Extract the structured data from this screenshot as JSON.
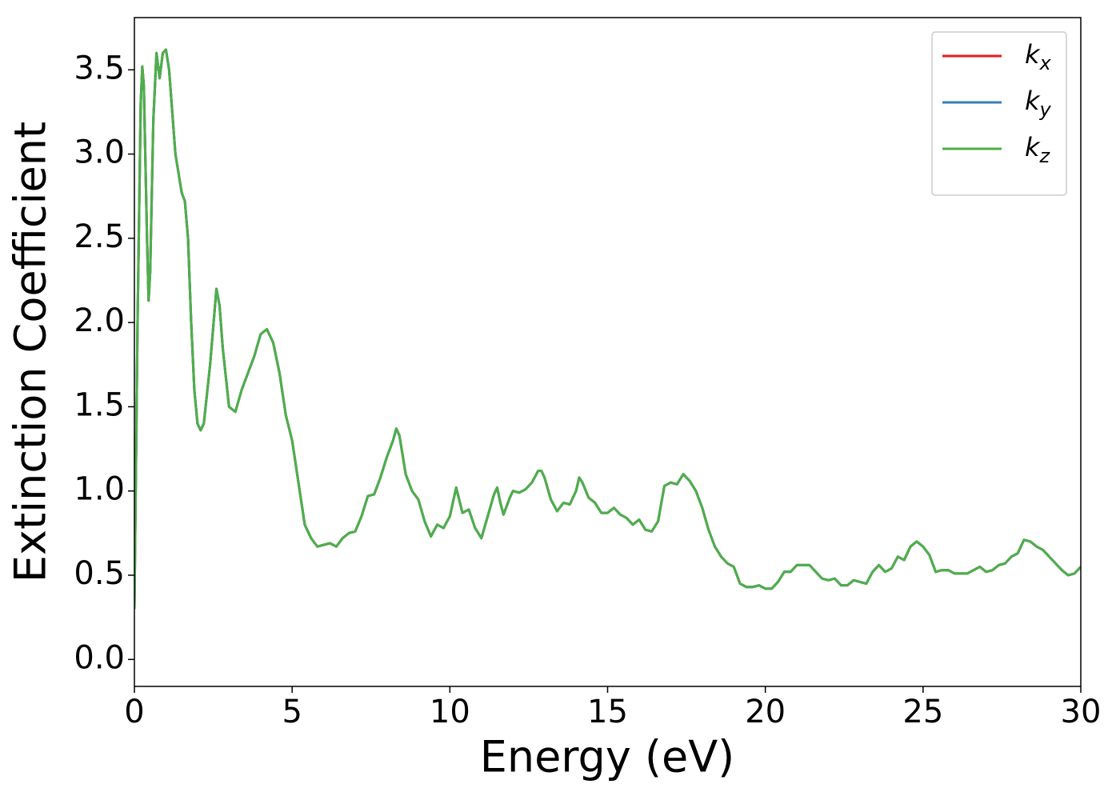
{
  "chart_data": {
    "type": "line",
    "xlabel": "Energy (eV)",
    "ylabel": "Extinction Coefficient",
    "x": [
      0,
      0.1,
      0.2,
      0.25,
      0.3,
      0.4,
      0.45,
      0.5,
      0.6,
      0.7,
      0.8,
      0.9,
      1.0,
      1.1,
      1.2,
      1.3,
      1.5,
      1.6,
      1.7,
      1.8,
      1.9,
      2.0,
      2.1,
      2.2,
      2.4,
      2.6,
      2.7,
      2.8,
      3.0,
      3.2,
      3.4,
      3.6,
      3.8,
      4.0,
      4.2,
      4.4,
      4.6,
      4.8,
      5.0,
      5.2,
      5.4,
      5.6,
      5.8,
      6.0,
      6.2,
      6.4,
      6.6,
      6.8,
      7.0,
      7.2,
      7.4,
      7.6,
      7.8,
      8.0,
      8.2,
      8.3,
      8.4,
      8.6,
      8.8,
      9.0,
      9.2,
      9.4,
      9.6,
      9.8,
      10.0,
      10.2,
      10.4,
      10.6,
      10.8,
      11.0,
      11.2,
      11.4,
      11.5,
      11.6,
      11.7,
      11.9,
      12.0,
      12.2,
      12.4,
      12.6,
      12.8,
      12.9,
      13.0,
      13.2,
      13.4,
      13.6,
      13.8,
      14.0,
      14.1,
      14.2,
      14.4,
      14.6,
      14.8,
      15.0,
      15.2,
      15.4,
      15.6,
      15.8,
      16.0,
      16.2,
      16.4,
      16.6,
      16.8,
      17.0,
      17.2,
      17.4,
      17.6,
      17.8,
      18.0,
      18.2,
      18.4,
      18.6,
      18.8,
      19.0,
      19.2,
      19.4,
      19.6,
      19.8,
      20.0,
      20.2,
      20.4,
      20.6,
      20.8,
      21.0,
      21.2,
      21.4,
      21.6,
      21.8,
      22.0,
      22.2,
      22.4,
      22.6,
      22.8,
      23.0,
      23.2,
      23.4,
      23.6,
      23.8,
      24.0,
      24.2,
      24.4,
      24.6,
      24.8,
      25.0,
      25.2,
      25.4,
      25.6,
      25.8,
      26.0,
      26.2,
      26.4,
      26.6,
      26.8,
      27.0,
      27.2,
      27.4,
      27.6,
      27.8,
      28.0,
      28.2,
      28.4,
      28.6,
      28.8,
      29.0,
      29.2,
      29.4,
      29.6,
      29.8,
      30.0
    ],
    "series": [
      {
        "name": "kx",
        "color": "#e41a1c",
        "values": [
          0.3,
          2.0,
          3.3,
          3.52,
          3.4,
          2.5,
          2.13,
          2.3,
          3.2,
          3.6,
          3.45,
          3.6,
          3.62,
          3.5,
          3.25,
          3.0,
          2.77,
          2.72,
          2.5,
          2.0,
          1.6,
          1.4,
          1.36,
          1.4,
          1.75,
          2.2,
          2.1,
          1.85,
          1.5,
          1.47,
          1.6,
          1.7,
          1.8,
          1.93,
          1.96,
          1.88,
          1.7,
          1.45,
          1.3,
          1.05,
          0.8,
          0.72,
          0.67,
          0.68,
          0.69,
          0.67,
          0.72,
          0.75,
          0.76,
          0.85,
          0.97,
          0.98,
          1.08,
          1.2,
          1.3,
          1.37,
          1.33,
          1.1,
          1.0,
          0.95,
          0.82,
          0.73,
          0.8,
          0.78,
          0.85,
          1.02,
          0.87,
          0.89,
          0.78,
          0.72,
          0.85,
          0.98,
          1.02,
          0.93,
          0.86,
          0.96,
          1.0,
          0.99,
          1.01,
          1.05,
          1.12,
          1.12,
          1.08,
          0.95,
          0.88,
          0.93,
          0.92,
          1.0,
          1.08,
          1.05,
          0.96,
          0.93,
          0.87,
          0.87,
          0.9,
          0.86,
          0.84,
          0.8,
          0.83,
          0.77,
          0.76,
          0.82,
          1.03,
          1.05,
          1.04,
          1.1,
          1.06,
          1.0,
          0.9,
          0.77,
          0.67,
          0.61,
          0.57,
          0.55,
          0.45,
          0.43,
          0.43,
          0.44,
          0.42,
          0.42,
          0.46,
          0.52,
          0.52,
          0.56,
          0.56,
          0.56,
          0.52,
          0.48,
          0.47,
          0.48,
          0.44,
          0.44,
          0.47,
          0.46,
          0.45,
          0.52,
          0.56,
          0.52,
          0.54,
          0.61,
          0.59,
          0.67,
          0.7,
          0.67,
          0.62,
          0.52,
          0.53,
          0.53,
          0.51,
          0.51,
          0.51,
          0.53,
          0.55,
          0.52,
          0.53,
          0.56,
          0.57,
          0.61,
          0.63,
          0.71,
          0.7,
          0.67,
          0.65,
          0.61,
          0.57,
          0.53,
          0.5,
          0.51,
          0.55
        ]
      },
      {
        "name": "ky",
        "color": "#377eb8",
        "values": [
          0.3,
          2.0,
          3.3,
          3.52,
          3.4,
          2.5,
          2.13,
          2.3,
          3.2,
          3.6,
          3.45,
          3.6,
          3.62,
          3.5,
          3.25,
          3.0,
          2.77,
          2.72,
          2.5,
          2.0,
          1.6,
          1.4,
          1.36,
          1.4,
          1.75,
          2.2,
          2.1,
          1.85,
          1.5,
          1.47,
          1.6,
          1.7,
          1.8,
          1.93,
          1.96,
          1.88,
          1.7,
          1.45,
          1.3,
          1.05,
          0.8,
          0.72,
          0.67,
          0.68,
          0.69,
          0.67,
          0.72,
          0.75,
          0.76,
          0.85,
          0.97,
          0.98,
          1.08,
          1.2,
          1.3,
          1.37,
          1.33,
          1.1,
          1.0,
          0.95,
          0.82,
          0.73,
          0.8,
          0.78,
          0.85,
          1.02,
          0.87,
          0.89,
          0.78,
          0.72,
          0.85,
          0.98,
          1.02,
          0.93,
          0.86,
          0.96,
          1.0,
          0.99,
          1.01,
          1.05,
          1.12,
          1.12,
          1.08,
          0.95,
          0.88,
          0.93,
          0.92,
          1.0,
          1.08,
          1.05,
          0.96,
          0.93,
          0.87,
          0.87,
          0.9,
          0.86,
          0.84,
          0.8,
          0.83,
          0.77,
          0.76,
          0.82,
          1.03,
          1.05,
          1.04,
          1.1,
          1.06,
          1.0,
          0.9,
          0.77,
          0.67,
          0.61,
          0.57,
          0.55,
          0.45,
          0.43,
          0.43,
          0.44,
          0.42,
          0.42,
          0.46,
          0.52,
          0.52,
          0.56,
          0.56,
          0.56,
          0.52,
          0.48,
          0.47,
          0.48,
          0.44,
          0.44,
          0.47,
          0.46,
          0.45,
          0.52,
          0.56,
          0.52,
          0.54,
          0.61,
          0.59,
          0.67,
          0.7,
          0.67,
          0.62,
          0.52,
          0.53,
          0.53,
          0.51,
          0.51,
          0.51,
          0.53,
          0.55,
          0.52,
          0.53,
          0.56,
          0.57,
          0.61,
          0.63,
          0.71,
          0.7,
          0.67,
          0.65,
          0.61,
          0.57,
          0.53,
          0.5,
          0.51,
          0.55
        ]
      },
      {
        "name": "kz",
        "color": "#4daf4a",
        "values": [
          0.3,
          2.0,
          3.3,
          3.52,
          3.4,
          2.5,
          2.13,
          2.3,
          3.2,
          3.6,
          3.45,
          3.6,
          3.62,
          3.5,
          3.25,
          3.0,
          2.77,
          2.72,
          2.5,
          2.0,
          1.6,
          1.4,
          1.36,
          1.4,
          1.75,
          2.2,
          2.1,
          1.85,
          1.5,
          1.47,
          1.6,
          1.7,
          1.8,
          1.93,
          1.96,
          1.88,
          1.7,
          1.45,
          1.3,
          1.05,
          0.8,
          0.72,
          0.67,
          0.68,
          0.69,
          0.67,
          0.72,
          0.75,
          0.76,
          0.85,
          0.97,
          0.98,
          1.08,
          1.2,
          1.3,
          1.37,
          1.33,
          1.1,
          1.0,
          0.95,
          0.82,
          0.73,
          0.8,
          0.78,
          0.85,
          1.02,
          0.87,
          0.89,
          0.78,
          0.72,
          0.85,
          0.98,
          1.02,
          0.93,
          0.86,
          0.96,
          1.0,
          0.99,
          1.01,
          1.05,
          1.12,
          1.12,
          1.08,
          0.95,
          0.88,
          0.93,
          0.92,
          1.0,
          1.08,
          1.05,
          0.96,
          0.93,
          0.87,
          0.87,
          0.9,
          0.86,
          0.84,
          0.8,
          0.83,
          0.77,
          0.76,
          0.82,
          1.03,
          1.05,
          1.04,
          1.1,
          1.06,
          1.0,
          0.9,
          0.77,
          0.67,
          0.61,
          0.57,
          0.55,
          0.45,
          0.43,
          0.43,
          0.44,
          0.42,
          0.42,
          0.46,
          0.52,
          0.52,
          0.56,
          0.56,
          0.56,
          0.52,
          0.48,
          0.47,
          0.48,
          0.44,
          0.44,
          0.47,
          0.46,
          0.45,
          0.52,
          0.56,
          0.52,
          0.54,
          0.61,
          0.59,
          0.67,
          0.7,
          0.67,
          0.62,
          0.52,
          0.53,
          0.53,
          0.51,
          0.51,
          0.51,
          0.53,
          0.55,
          0.52,
          0.53,
          0.56,
          0.57,
          0.61,
          0.63,
          0.71,
          0.7,
          0.67,
          0.65,
          0.61,
          0.57,
          0.53,
          0.5,
          0.51,
          0.55
        ]
      }
    ],
    "xlim": [
      0,
      30
    ],
    "xticks": [
      0,
      5,
      10,
      15,
      20,
      25,
      30
    ],
    "ylim": [
      -0.16,
      3.81
    ],
    "yticks": [
      {
        "value": 0,
        "label": "0.0"
      },
      {
        "value": 0.5,
        "label": "0.5"
      },
      {
        "value": 1,
        "label": "1.0"
      },
      {
        "value": 1.5,
        "label": "1.5"
      },
      {
        "value": 2,
        "label": "2.0"
      },
      {
        "value": 2.5,
        "label": "2.5"
      },
      {
        "value": 3,
        "label": "3.0"
      },
      {
        "value": 3.5,
        "label": "3.5"
      }
    ],
    "legend": "upper right",
    "grid": false
  }
}
